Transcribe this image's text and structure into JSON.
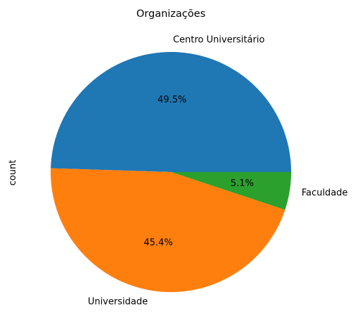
{
  "chart_data": {
    "type": "pie",
    "title": "Organizações",
    "ylabel": "count",
    "xlabel": "",
    "categories": [
      "Centro Universitário",
      "Universidade",
      "Faculdade"
    ],
    "values": [
      49.5,
      45.4,
      5.1
    ],
    "value_labels": [
      "49.5%",
      "45.4%",
      "5.1%"
    ],
    "colors": [
      "#1f77b4",
      "#ff7f0e",
      "#2ca02c"
    ],
    "start_angle_deg": 0,
    "direction": "counterclockwise",
    "legend": "none",
    "grid": false
  }
}
